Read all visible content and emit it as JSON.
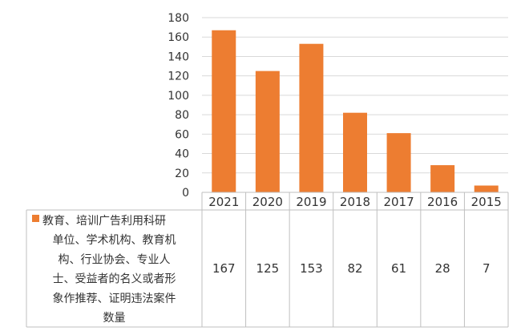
{
  "chart_data": {
    "type": "bar",
    "categories": [
      "2021",
      "2020",
      "2019",
      "2018",
      "2017",
      "2016",
      "2015"
    ],
    "series": [
      {
        "name": "教育、培训广告利用科研单位、学术机构、教育机构、行业协会、专业人士、受益者的名义或者形象作推荐、证明违法案件数量",
        "values": [
          167,
          125,
          153,
          82,
          61,
          28,
          7
        ]
      }
    ],
    "legend_lines": [
      "教育、培训广告利用科研",
      "单位、学术机构、教育机",
      "构、行业协会、专业人",
      "士、受益者的名义或者形",
      "象作推荐、证明违法案件",
      "数量"
    ],
    "ylim": [
      0,
      180
    ],
    "yticks": [
      "0",
      "20",
      "40",
      "60",
      "80",
      "100",
      "120",
      "140",
      "160",
      "180"
    ],
    "grid": true,
    "legend_placement": "data-table",
    "colors": {
      "bar": "#ED7D31",
      "grid": "#D9D9D9",
      "table_border": "#BFBFBF"
    }
  }
}
